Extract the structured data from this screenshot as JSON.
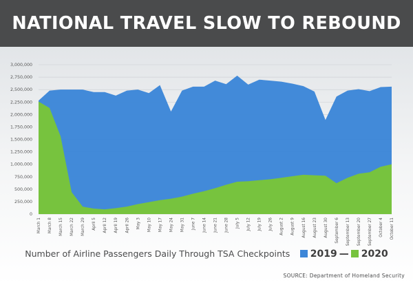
{
  "banner": {
    "title": "NATIONAL TRAVEL SLOW TO REBOUND"
  },
  "chart_data": {
    "type": "area",
    "title": "National Travel Slow to Rebound",
    "caption": "Number of Airline Passengers Daily Through TSA Checkpoints",
    "source": "SOURCE: Department of Homeland Security",
    "x_labels": [
      "March 1",
      "March 8",
      "March 15",
      "March 22",
      "March 29",
      "April 5",
      "April 12",
      "April 19",
      "April 26",
      "May 3",
      "May 10",
      "May 17",
      "May 24",
      "May 31",
      "June 7",
      "June 14",
      "June 21",
      "June 28",
      "July 5",
      "July 12",
      "July 19",
      "July 26",
      "August 2",
      "August 9",
      "August 16",
      "August 23",
      "August 30",
      "September 6",
      "September 13",
      "September 20",
      "September 27",
      "October 4",
      "October 11"
    ],
    "y_ticks": [
      "0",
      "250,000",
      "500,000",
      "750,000",
      "1,000,000",
      "1,250,000",
      "1,500,000",
      "1,750,000",
      "2,000,000",
      "2,250,000",
      "2,500,000",
      "2,750,000",
      "3,000,000"
    ],
    "ylim": [
      0,
      3000000
    ],
    "series": [
      {
        "name": "2019",
        "color": "#3c86d8",
        "values": [
          2280000,
          2480000,
          2500000,
          2500000,
          2500000,
          2450000,
          2450000,
          2380000,
          2480000,
          2500000,
          2430000,
          2590000,
          2060000,
          2480000,
          2560000,
          2560000,
          2680000,
          2610000,
          2780000,
          2600000,
          2700000,
          2680000,
          2660000,
          2620000,
          2570000,
          2460000,
          1890000,
          2360000,
          2480000,
          2510000,
          2470000,
          2550000,
          2560000
        ]
      },
      {
        "name": "2020",
        "color": "#77c33e",
        "values": [
          2260000,
          2130000,
          1560000,
          440000,
          150000,
          110000,
          95000,
          120000,
          150000,
          200000,
          240000,
          280000,
          310000,
          350000,
          410000,
          460000,
          520000,
          590000,
          650000,
          660000,
          680000,
          700000,
          730000,
          760000,
          790000,
          780000,
          770000,
          620000,
          730000,
          810000,
          840000,
          950000,
          1000000
        ]
      }
    ],
    "legend": {
      "separator": "—",
      "position": "bottom-right"
    },
    "grid": true
  }
}
